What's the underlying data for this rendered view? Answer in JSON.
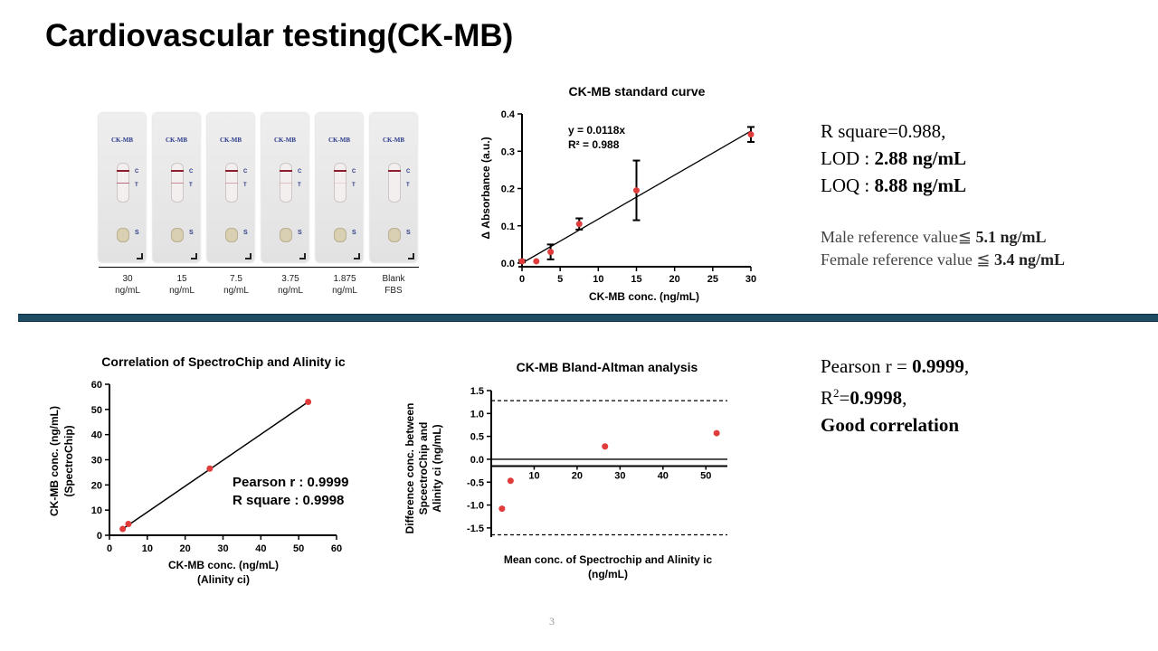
{
  "slide": {
    "title": "Cardiovascular testing(CK-MB)",
    "page_number": "3"
  },
  "strips": {
    "label": "CK-MB",
    "c": "C",
    "t": "T",
    "s": "S",
    "captions": [
      {
        "line1": "30",
        "line2": "ng/mL"
      },
      {
        "line1": "15",
        "line2": "ng/mL"
      },
      {
        "line1": "7.5",
        "line2": "ng/mL"
      },
      {
        "line1": "3.75",
        "line2": "ng/mL"
      },
      {
        "line1": "1.875",
        "line2": "ng/mL"
      },
      {
        "line1": "Blank",
        "line2": "FBS"
      }
    ]
  },
  "info_top": {
    "r_square": "R square=0.988,",
    "lod_label": "LOD : ",
    "lod_value": "2.88 ng/mL",
    "loq_label": "LOQ : ",
    "loq_value": "8.88 ng/mL",
    "male_label": "Male reference value≦ ",
    "male_value": "5.1 ng/mL",
    "female_label": "Female reference value ≦ ",
    "female_value": "3.4 ng/mL"
  },
  "info_bottom": {
    "pearson_label": "Pearson r = ",
    "pearson_value": "0.9999",
    "pearson_suffix": ",",
    "r2_prefix": "R",
    "r2_sup": "2",
    "r2_eq": "=",
    "r2_value": "0.9998",
    "r2_suffix": ",",
    "conclusion": "Good correlation"
  },
  "chart_data": [
    {
      "type": "scatter",
      "title": "CK-MB standard curve",
      "xlabel": "CK-MB conc. (ng/mL)",
      "ylabel": "Δ Absorbance (a.u.)",
      "xlim": [
        0,
        30
      ],
      "ylim": [
        0,
        0.4
      ],
      "xticks": [
        0,
        5,
        10,
        15,
        20,
        25,
        30
      ],
      "yticks": [
        0.0,
        0.1,
        0.2,
        0.3,
        0.4
      ],
      "points": [
        {
          "x": 0,
          "y": 0.005,
          "err": 0.003
        },
        {
          "x": 1.875,
          "y": 0.005,
          "err": 0.0
        },
        {
          "x": 3.75,
          "y": 0.03,
          "err": 0.02
        },
        {
          "x": 7.5,
          "y": 0.105,
          "err": 0.015
        },
        {
          "x": 15,
          "y": 0.195,
          "err": 0.08
        },
        {
          "x": 30,
          "y": 0.345,
          "err": 0.02
        }
      ],
      "fit": {
        "slope": 0.0118,
        "intercept": 0
      },
      "equation_line1": "y = 0.0118x",
      "equation_line2": "R² = 0.988",
      "grid": false,
      "marker_color": "#e03c3c"
    },
    {
      "type": "scatter",
      "title": "Correlation of SpectroChip and Alinity ic",
      "xlabel_line1": "CK-MB conc. (ng/mL)",
      "xlabel_line2": "(Alinity ci)",
      "ylabel_line1": "CK-MB conc. (ng/mL)",
      "ylabel_line2": "(SpectroChip)",
      "xlim": [
        0,
        60
      ],
      "ylim": [
        0,
        60
      ],
      "xticks": [
        0,
        10,
        20,
        30,
        40,
        50,
        60
      ],
      "yticks": [
        0,
        10,
        20,
        30,
        40,
        50,
        60
      ],
      "points": [
        {
          "x": 3.5,
          "y": 2.5
        },
        {
          "x": 5,
          "y": 4.5
        },
        {
          "x": 26.5,
          "y": 26.5
        },
        {
          "x": 52.5,
          "y": 53
        }
      ],
      "annotation_line1": "Pearson r : 0.9999",
      "annotation_line2": "R square : 0.9998",
      "grid": false,
      "marker_color": "#e03c3c"
    },
    {
      "type": "scatter",
      "title": "CK-MB Bland-Altman analysis",
      "xlabel_line1": "Mean conc. of Spectrochip and Alinity ic",
      "xlabel_line2": "(ng/mL)",
      "ylabel_line1": "Difference conc. between",
      "ylabel_line2": "SpcectroChip and",
      "ylabel_line3": "Alinity ci (ng/mL)",
      "xlim": [
        0,
        55
      ],
      "ylim": [
        -1.7,
        1.5
      ],
      "xticks": [
        10,
        20,
        30,
        40,
        50
      ],
      "yticks": [
        -1.5,
        -1.0,
        -0.5,
        0.0,
        0.5,
        1.0,
        1.5
      ],
      "points": [
        {
          "x": 2.5,
          "y": -1.08
        },
        {
          "x": 4.5,
          "y": -0.47
        },
        {
          "x": 26.5,
          "y": 0.28
        },
        {
          "x": 52.5,
          "y": 0.57
        }
      ],
      "upper_limit": 1.28,
      "lower_limit": -1.65,
      "mean_diff": -0.15,
      "grid": false,
      "marker_color": "#e03c3c"
    }
  ]
}
